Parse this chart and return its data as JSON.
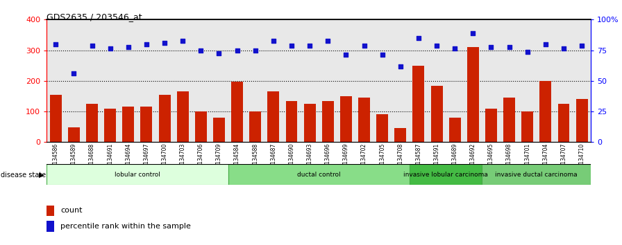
{
  "title": "GDS2635 / 203546_at",
  "samples": [
    "GSM134586",
    "GSM134589",
    "GSM134688",
    "GSM134691",
    "GSM134694",
    "GSM134697",
    "GSM134700",
    "GSM134703",
    "GSM134706",
    "GSM134709",
    "GSM134584",
    "GSM134588",
    "GSM134687",
    "GSM134690",
    "GSM134693",
    "GSM134696",
    "GSM134699",
    "GSM134702",
    "GSM134705",
    "GSM134708",
    "GSM134587",
    "GSM134591",
    "GSM134689",
    "GSM134692",
    "GSM134695",
    "GSM134698",
    "GSM134701",
    "GSM134704",
    "GSM134707",
    "GSM134710"
  ],
  "counts": [
    155,
    48,
    126,
    110,
    115,
    115,
    155,
    165,
    100,
    80,
    197,
    100,
    165,
    135,
    125,
    135,
    150,
    145,
    90,
    47,
    250,
    183,
    80,
    310,
    110,
    145,
    100,
    200,
    125,
    140
  ],
  "percentiles": [
    320,
    225,
    315,
    305,
    310,
    320,
    325,
    330,
    300,
    290,
    300,
    300,
    330,
    315,
    315,
    330,
    285,
    315,
    285,
    248,
    340,
    315,
    305,
    355,
    310,
    310,
    295,
    320,
    305,
    315
  ],
  "groups": [
    {
      "label": "lobular control",
      "start": 0,
      "end": 10,
      "color": "#ddffdd",
      "edge": "#44aa44"
    },
    {
      "label": "ductal control",
      "start": 10,
      "end": 20,
      "color": "#88dd88",
      "edge": "#44aa44"
    },
    {
      "label": "invasive lobular carcinoma",
      "start": 20,
      "end": 24,
      "color": "#44bb44",
      "edge": "#44aa44"
    },
    {
      "label": "invasive ductal carcinoma",
      "start": 24,
      "end": 30,
      "color": "#77cc77",
      "edge": "#44aa44"
    }
  ],
  "bar_color": "#cc2200",
  "dot_color": "#1111cc",
  "left_ylim": [
    0,
    400
  ],
  "right_ylim": [
    0,
    400
  ],
  "left_yticks": [
    0,
    100,
    200,
    300,
    400
  ],
  "right_yticks_val": [
    0,
    100,
    200,
    300,
    400
  ],
  "right_ytick_labels": [
    "0",
    "25",
    "50",
    "75",
    "100%"
  ],
  "gridlines": [
    100,
    200,
    300
  ],
  "plot_bg_color": "#e8e8e8"
}
